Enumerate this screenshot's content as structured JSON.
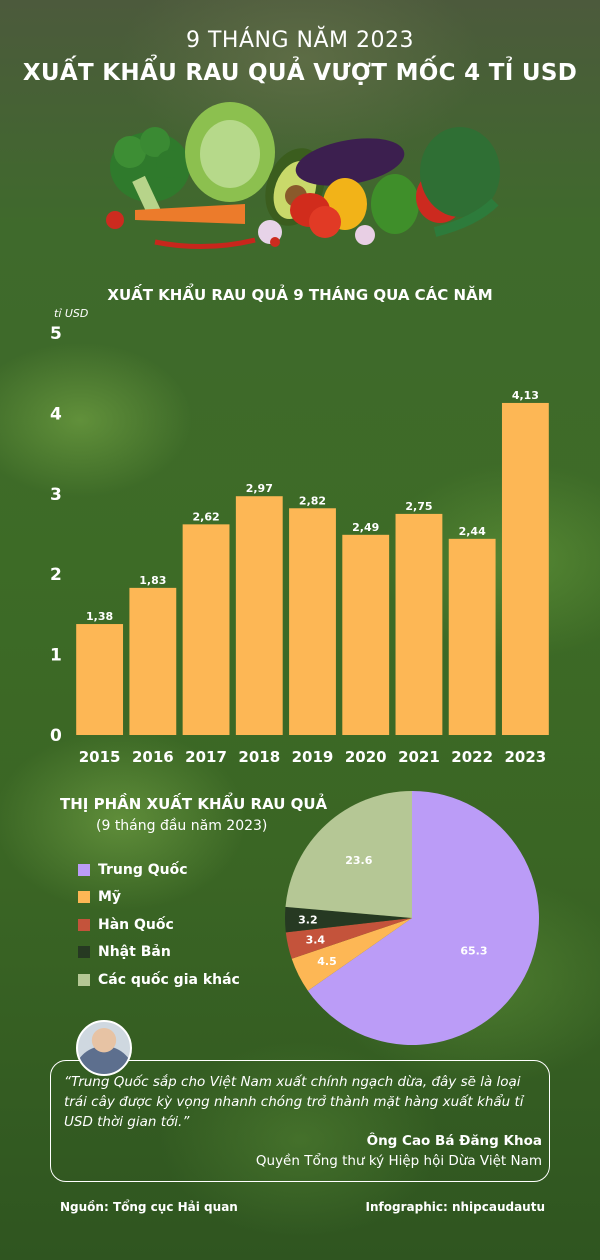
{
  "header": {
    "sup_title": "9 THÁNG NĂM 2023",
    "main_title": "XUẤT KHẨU RAU QUẢ VƯỢT MỐC 4 TỈ USD"
  },
  "chart_data": [
    {
      "type": "bar",
      "title": "XUẤT KHẨU RAU QUẢ 9 THÁNG QUA CÁC NĂM",
      "ylabel": "tỉ USD",
      "ylim": [
        0,
        5
      ],
      "yticks": [
        "0",
        "1",
        "2",
        "3",
        "4",
        "5"
      ],
      "categories": [
        "2015",
        "2016",
        "2017",
        "2018",
        "2019",
        "2020",
        "2021",
        "2022",
        "2023"
      ],
      "values": [
        1.38,
        1.83,
        2.62,
        2.97,
        2.82,
        2.49,
        2.75,
        2.44,
        4.13
      ],
      "value_labels": [
        "1,38",
        "1,83",
        "2,62",
        "2,97",
        "2,82",
        "2,49",
        "2,75",
        "2,44",
        "4,13"
      ],
      "bar_color": "#fdb755",
      "grid": false
    },
    {
      "type": "pie",
      "title": "THỊ PHẦN XUẤT KHẨU RAU QUẢ",
      "subtitle": "(9 tháng đầu năm 2023)",
      "legend_position": "left",
      "slices": [
        {
          "label": "Trung Quốc",
          "value": 65.3,
          "value_label": "65.3",
          "color": "#bb9cf7"
        },
        {
          "label": "Mỹ",
          "value": 4.5,
          "value_label": "4.5",
          "color": "#fdb755"
        },
        {
          "label": "Hàn Quốc",
          "value": 3.4,
          "value_label": "3.4",
          "color": "#c4533b"
        },
        {
          "label": "Nhật Bản",
          "value": 3.2,
          "value_label": "3.2",
          "color": "#263922"
        },
        {
          "label": "Các quốc gia khác",
          "value": 23.6,
          "value_label": "23.6",
          "color": "#b5c795"
        }
      ]
    }
  ],
  "quote": {
    "text": "“Trung Quốc sắp cho Việt Nam xuất chính ngạch dừa, đây sẽ là loại trái cây được kỳ vọng nhanh chóng trở thành mặt hàng xuất khẩu tỉ USD thời gian tới.”",
    "name": "Ông Cao Bá Đăng Khoa",
    "role": "Quyền Tổng thư ký Hiệp hội Dừa Việt Nam"
  },
  "footer": {
    "source": "Nguồn: Tổng cục Hải quan",
    "credit": "Infographic: nhipcaudautu"
  }
}
